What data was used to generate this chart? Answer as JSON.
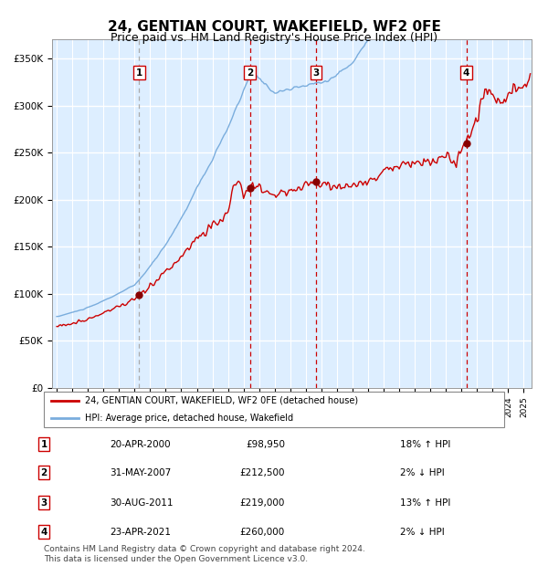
{
  "title": "24, GENTIAN COURT, WAKEFIELD, WF2 0FE",
  "subtitle": "Price paid vs. HM Land Registry's House Price Index (HPI)",
  "title_fontsize": 11,
  "subtitle_fontsize": 9,
  "ylim": [
    0,
    370000
  ],
  "yticks": [
    0,
    50000,
    100000,
    150000,
    200000,
    250000,
    300000,
    350000
  ],
  "ytick_labels": [
    "£0",
    "£50K",
    "£100K",
    "£150K",
    "£200K",
    "£250K",
    "£300K",
    "£350K"
  ],
  "xmin": 1994.7,
  "xmax": 2025.5,
  "background_color": "#ddeeff",
  "grid_color": "#ffffff",
  "red_line_color": "#cc0000",
  "blue_line_color": "#7aaddd",
  "purchase_marker_color": "#880000",
  "purchases": [
    {
      "label": "1",
      "date_x": 2000.3,
      "price": 98950,
      "vline_style": "gray"
    },
    {
      "label": "2",
      "date_x": 2007.41,
      "price": 212500,
      "vline_style": "red"
    },
    {
      "label": "3",
      "date_x": 2011.66,
      "price": 219000,
      "vline_style": "red"
    },
    {
      "label": "4",
      "date_x": 2021.31,
      "price": 260000,
      "vline_style": "red"
    }
  ],
  "legend_entries": [
    {
      "label": "24, GENTIAN COURT, WAKEFIELD, WF2 0FE (detached house)",
      "color": "#cc0000"
    },
    {
      "label": "HPI: Average price, detached house, Wakefield",
      "color": "#7aaddd"
    }
  ],
  "table_rows": [
    {
      "num": "1",
      "date": "20-APR-2000",
      "price": "£98,950",
      "hpi": "18% ↑ HPI"
    },
    {
      "num": "2",
      "date": "31-MAY-2007",
      "price": "£212,500",
      "hpi": "2% ↓ HPI"
    },
    {
      "num": "3",
      "date": "30-AUG-2011",
      "price": "£219,000",
      "hpi": "13% ↑ HPI"
    },
    {
      "num": "4",
      "date": "23-APR-2021",
      "price": "£260,000",
      "hpi": "2% ↓ HPI"
    }
  ],
  "footnote": "Contains HM Land Registry data © Crown copyright and database right 2024.\nThis data is licensed under the Open Government Licence v3.0.",
  "footnote_fontsize": 6.5,
  "number_box_edge": "#cc0000"
}
